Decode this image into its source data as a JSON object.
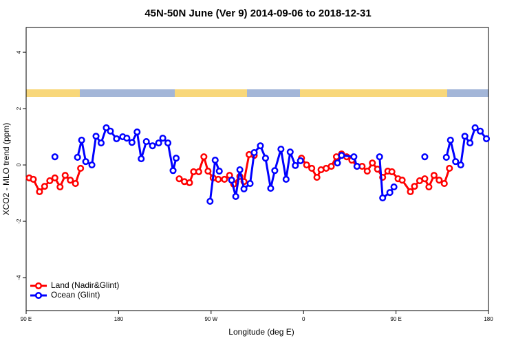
{
  "chart_data": {
    "type": "line",
    "title": "45N-50N June (Ver 9)   2014-09-06 to 2018-12-31",
    "x_label": "Longitude (deg E)",
    "y_label": "XCO2 - MLO trend (ppm)",
    "xlim": [
      90,
      540
    ],
    "ylim": [
      -5.17,
      4.88
    ],
    "xticks": [
      {
        "value": 90,
        "label": "90 E"
      },
      180,
      {
        "value": 270,
        "label": "90 W"
      },
      {
        "value": 360,
        "label": "0"
      },
      {
        "value": 450,
        "label": "90 E"
      },
      {
        "value": 540,
        "label": "180"
      }
    ],
    "yticks": [
      -4,
      -2,
      0,
      2,
      4
    ],
    "legend": "bottom-left",
    "series": [
      {
        "name": "Land (Nadir&Glint)",
        "color": "#ff0000",
        "x": [
          93,
          97,
          103,
          108,
          113,
          118,
          123,
          128,
          133,
          138,
          143,
          null,
          239,
          244,
          249,
          253,
          258,
          263,
          267,
          272,
          277,
          283,
          288,
          292,
          298,
          302,
          307,
          312,
          null,
          358,
          363,
          368,
          373,
          377,
          382,
          387,
          392,
          397,
          402,
          407,
          412,
          417,
          422,
          427,
          432,
          437,
          442,
          446,
          452,
          456,
          464,
          468,
          473,
          478,
          482,
          487,
          492,
          497,
          502
        ],
        "values": [
          -0.46,
          -0.51,
          -0.95,
          -0.76,
          -0.56,
          -0.46,
          -0.78,
          -0.37,
          -0.54,
          -0.66,
          -0.12,
          null,
          -0.49,
          -0.59,
          -0.63,
          -0.24,
          -0.24,
          0.29,
          -0.22,
          -0.46,
          -0.51,
          -0.51,
          -0.37,
          -0.68,
          -0.41,
          -0.59,
          0.37,
          0.34,
          null,
          0.24,
          0.0,
          -0.12,
          -0.44,
          -0.17,
          -0.12,
          -0.05,
          0.29,
          0.39,
          0.29,
          0.17,
          -0.05,
          -0.05,
          -0.22,
          0.07,
          -0.15,
          -0.44,
          -0.22,
          -0.24,
          -0.49,
          -0.54,
          -0.95,
          -0.76,
          -0.56,
          -0.49,
          -0.78,
          -0.37,
          -0.54,
          -0.66,
          -0.12
        ]
      },
      {
        "name": "Ocean (Glint)",
        "color": "#0000ff",
        "x": [
          118,
          null,
          140,
          144,
          148,
          154,
          158,
          163,
          168,
          172,
          178,
          184,
          188,
          193,
          198,
          202,
          207,
          213,
          219,
          223,
          228,
          233,
          236,
          null,
          269,
          274,
          278,
          null,
          290,
          294,
          298,
          302,
          308,
          312,
          318,
          323,
          328,
          332,
          338,
          343,
          347,
          352,
          357,
          null,
          393,
          397,
          409,
          412,
          null,
          434,
          437,
          444,
          448,
          null,
          478,
          null,
          499,
          503,
          508,
          513,
          517,
          522,
          527,
          532,
          538
        ],
        "values": [
          0.29,
          null,
          0.27,
          0.88,
          0.12,
          0.0,
          1.02,
          0.78,
          1.32,
          1.2,
          0.93,
          1.0,
          0.95,
          0.8,
          1.17,
          0.22,
          0.83,
          0.68,
          0.78,
          0.95,
          0.78,
          -0.2,
          0.24,
          null,
          -1.29,
          0.17,
          -0.22,
          null,
          -0.54,
          -1.12,
          -0.17,
          -0.85,
          -0.66,
          0.44,
          0.68,
          0.24,
          -0.83,
          -0.2,
          0.56,
          -0.51,
          0.46,
          -0.02,
          0.15,
          null,
          0.07,
          0.34,
          0.29,
          -0.05,
          null,
          0.29,
          -1.17,
          -0.98,
          -0.78,
          null,
          0.29,
          null,
          0.27,
          0.88,
          0.12,
          0.0,
          1.02,
          0.78,
          1.32,
          1.2,
          0.93
        ]
      }
    ]
  }
}
